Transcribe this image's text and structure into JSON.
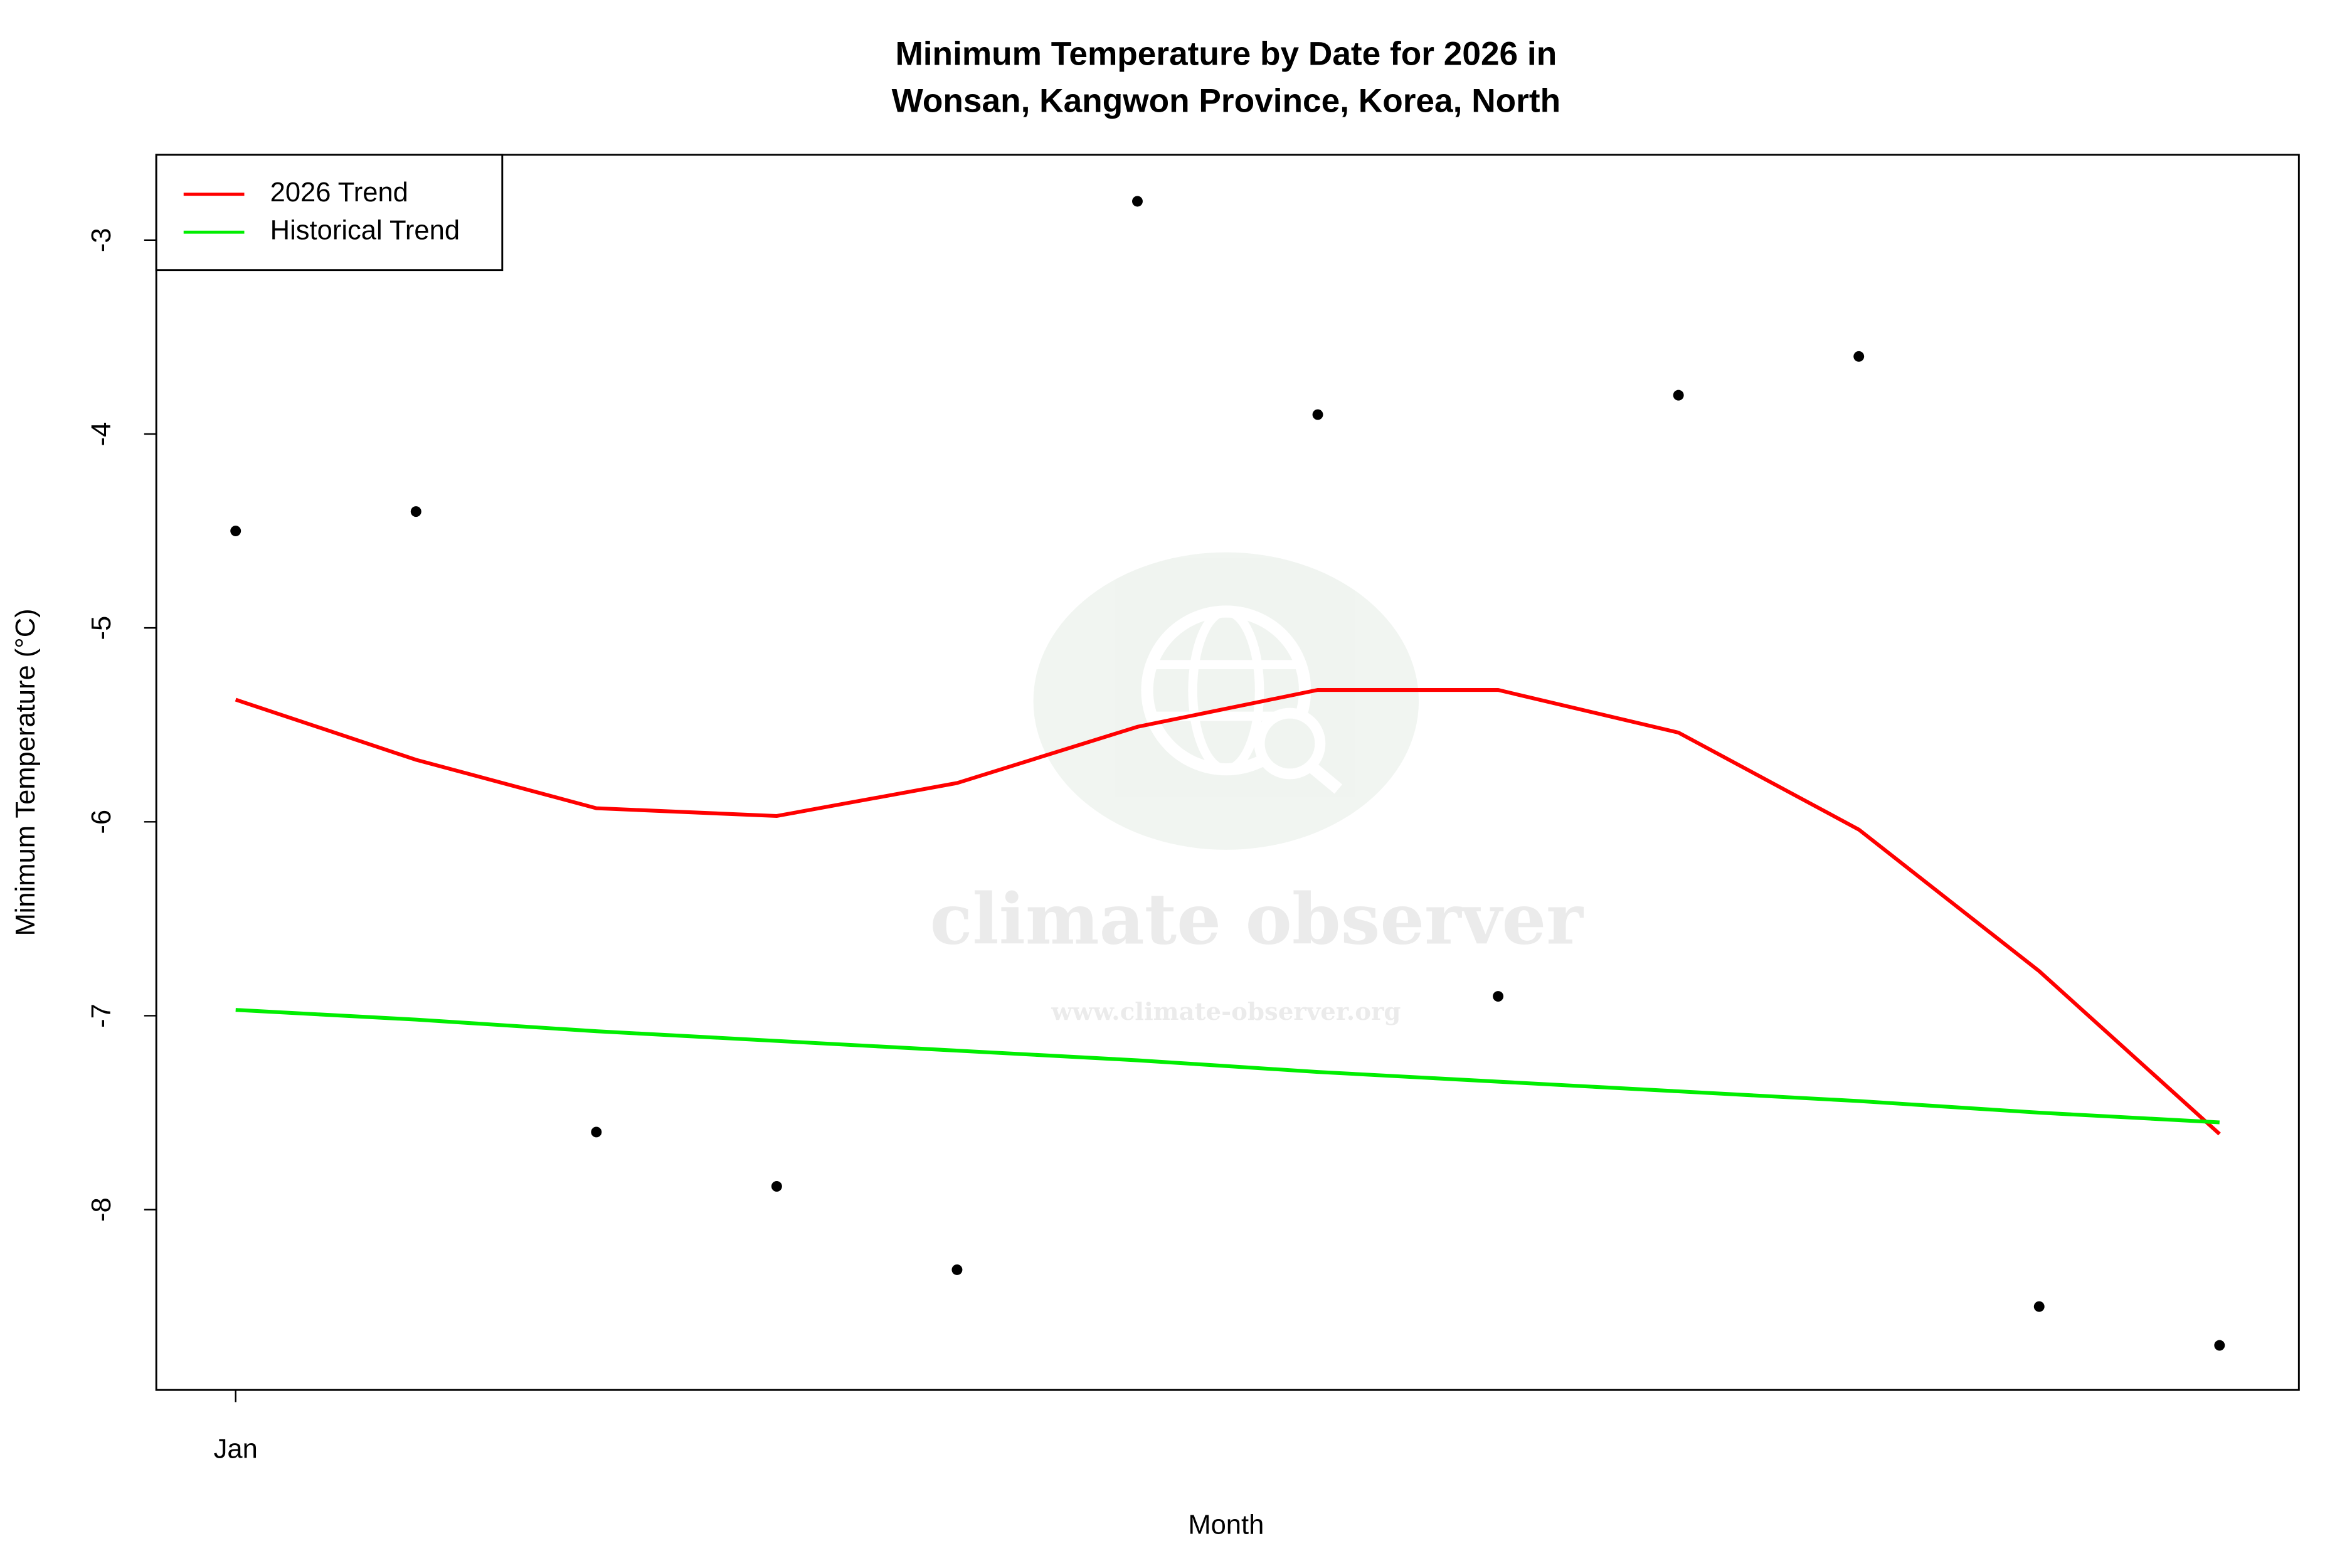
{
  "chart_data": {
    "type": "scatter-trend",
    "title": [
      "Minimum Temperature by Date for 2026 in",
      "Wonsan, Kangwon Province, Korea, North"
    ],
    "x_label": "Month",
    "y_label": "Minimum Temperature (°C)",
    "categories": [
      "Jan",
      null,
      null,
      null,
      null,
      null,
      null,
      null,
      null,
      null,
      null,
      null
    ],
    "ylim": [
      -8.93,
      -2.56
    ],
    "yticks": [
      -3,
      -4,
      -5,
      -6,
      -7,
      -8
    ],
    "points": {
      "color": "#000000",
      "values": [
        -4.5,
        -4.4,
        -7.6,
        -7.88,
        -8.31,
        -2.8,
        -3.9,
        -6.9,
        -3.8,
        -3.6,
        -8.5,
        -8.7
      ]
    },
    "series": [
      {
        "name": "2026 Trend",
        "color": "#ff0000",
        "values": [
          -5.37,
          -5.68,
          -5.93,
          -5.97,
          -5.8,
          -5.51,
          -5.32,
          -5.32,
          -5.54,
          -6.04,
          -6.77,
          -7.61
        ]
      },
      {
        "name": "Historical Trend",
        "color": "#00ee00",
        "values": [
          -6.97,
          -7.02,
          -7.08,
          -7.13,
          -7.18,
          -7.23,
          -7.29,
          -7.34,
          -7.39,
          -7.44,
          -7.5,
          -7.55
        ]
      }
    ],
    "legend": "top-left",
    "watermark": {
      "text": "climate observer",
      "url": "www.climate-observer.org"
    }
  }
}
